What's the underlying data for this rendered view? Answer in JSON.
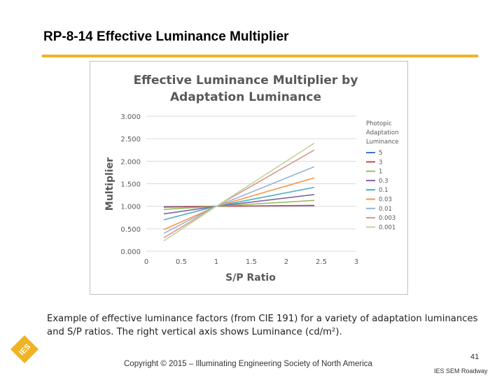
{
  "slide": {
    "title": "RP-8-14 Effective Luminance Multiplier",
    "caption": "Example of effective luminance factors (from CIE 191) for a variety of adaptation luminances and S/P ratios. The right vertical axis shows Luminance (cd/m²).",
    "copyright": "Copyright © 2015 – Illuminating Engineering Society of North America",
    "slide_number": "41",
    "footer_label": "IES SEM Roadway",
    "logo_text": "IES",
    "accent_color": "#f0b323"
  },
  "chart_data": {
    "type": "line",
    "title_lines": [
      "Effective Luminance Multiplier by",
      "Adaptation Luminance"
    ],
    "xlabel": "S/P Ratio",
    "ylabel": "Multiplier",
    "xlim": [
      0,
      3
    ],
    "ylim": [
      0,
      3
    ],
    "x_ticks": [
      "0",
      "0.5",
      "1",
      "1.5",
      "2",
      "2.5",
      "3"
    ],
    "y_ticks": [
      "0.000",
      "0.500",
      "1.000",
      "1.500",
      "2.000",
      "2.500",
      "3.000"
    ],
    "grid": true,
    "legend_title": [
      "Photopic",
      "Adaptation",
      "Luminance"
    ],
    "legend_position": "right",
    "series": [
      {
        "name": "5",
        "color": "#4472c4",
        "x": [
          0.25,
          1,
          2.4
        ],
        "y": [
          0.99,
          1.0,
          1.01
        ]
      },
      {
        "name": "3",
        "color": "#c0504d",
        "x": [
          0.25,
          1,
          2.4
        ],
        "y": [
          0.98,
          1.0,
          1.02
        ]
      },
      {
        "name": "1",
        "color": "#9bbb59",
        "x": [
          0.25,
          1,
          2.4
        ],
        "y": [
          0.93,
          1.0,
          1.13
        ]
      },
      {
        "name": "0.3",
        "color": "#8064a2",
        "x": [
          0.25,
          1,
          2.4
        ],
        "y": [
          0.83,
          1.0,
          1.26
        ]
      },
      {
        "name": "0.1",
        "color": "#4bacc6",
        "x": [
          0.25,
          1,
          2.4
        ],
        "y": [
          0.7,
          1.0,
          1.42
        ]
      },
      {
        "name": "0.03",
        "color": "#f79646",
        "x": [
          0.25,
          1,
          2.4
        ],
        "y": [
          0.48,
          1.0,
          1.63
        ]
      },
      {
        "name": "0.01",
        "color": "#95b3d7",
        "x": [
          0.25,
          1,
          2.4
        ],
        "y": [
          0.4,
          1.0,
          1.88
        ]
      },
      {
        "name": "0.003",
        "color": "#d99694",
        "x": [
          0.25,
          1,
          2.4
        ],
        "y": [
          0.3,
          1.0,
          2.25
        ]
      },
      {
        "name": "0.001",
        "color": "#c3d69b",
        "x": [
          0.25,
          1,
          2.4
        ],
        "y": [
          0.23,
          1.0,
          2.4
        ]
      }
    ]
  }
}
